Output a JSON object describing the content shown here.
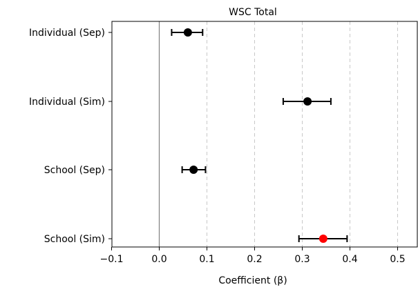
{
  "chart_data": {
    "type": "scatter",
    "subtype": "forest-plot",
    "title": "WSC Total",
    "xlabel": "Coefficient (β)",
    "ylabel": "",
    "xlim": [
      -0.1,
      0.545
    ],
    "xticks": [
      -0.1,
      0.0,
      0.1,
      0.2,
      0.3,
      0.4,
      0.5
    ],
    "xtick_labels": [
      "−0.1",
      "0.0",
      "0.1",
      "0.2",
      "0.3",
      "0.4",
      "0.5"
    ],
    "grid": "vertical dashed at positive ticks",
    "reference_line_x": 0,
    "categories": [
      "Individual (Sep)",
      "Individual (Sim)",
      "School (Sep)",
      "School (Sim)"
    ],
    "estimates": [
      0.06,
      0.311,
      0.072,
      0.344
    ],
    "ci_low": [
      0.026,
      0.26,
      0.048,
      0.293
    ],
    "ci_high": [
      0.091,
      0.36,
      0.097,
      0.394
    ],
    "point_colors": [
      "#000000",
      "#000000",
      "#000000",
      "#ff0000"
    ]
  }
}
